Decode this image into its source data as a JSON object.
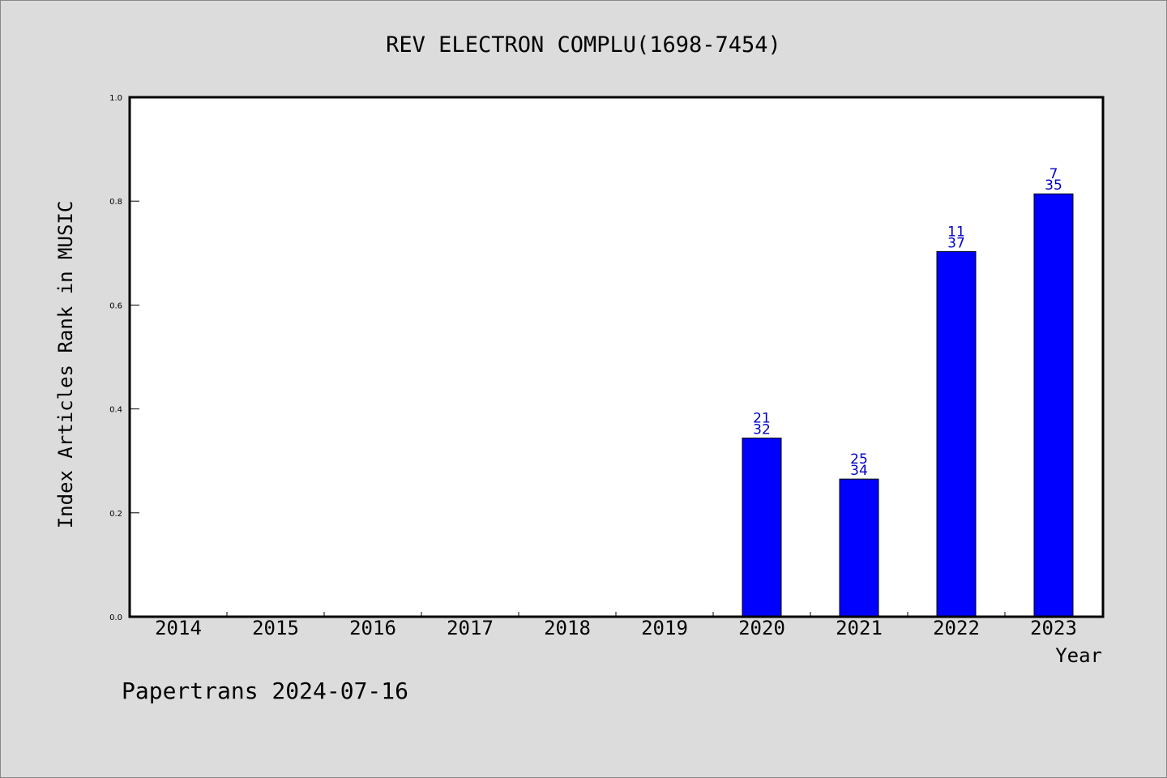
{
  "chart_data": {
    "type": "bar",
    "title": "REV ELECTRON COMPLU(1698-7454)",
    "xlabel": "Year",
    "ylabel": "Index Articles Rank in MUSIC",
    "footer": "Papertrans 2024-07-16",
    "categories": [
      "2014",
      "2015",
      "2016",
      "2017",
      "2018",
      "2019",
      "2020",
      "2021",
      "2022",
      "2023"
    ],
    "values": [
      null,
      null,
      null,
      null,
      null,
      null,
      0.344,
      0.265,
      0.703,
      0.814
    ],
    "label_top": [
      "",
      "",
      "",
      "",
      "",
      "",
      "21",
      "25",
      "11",
      "7"
    ],
    "label_bottom": [
      "",
      "",
      "",
      "",
      "",
      "",
      "32",
      "34",
      "37",
      "35"
    ],
    "ylim": [
      0,
      1.0
    ],
    "yticks": [
      "0.0",
      "0.2",
      "0.4",
      "0.6",
      "0.8",
      "1.0"
    ],
    "grid": false,
    "colors": {
      "bar": "#0000ff",
      "bar_label": "#0000cc",
      "background": "#dcdcdc",
      "plot_area": "#ffffff"
    }
  }
}
